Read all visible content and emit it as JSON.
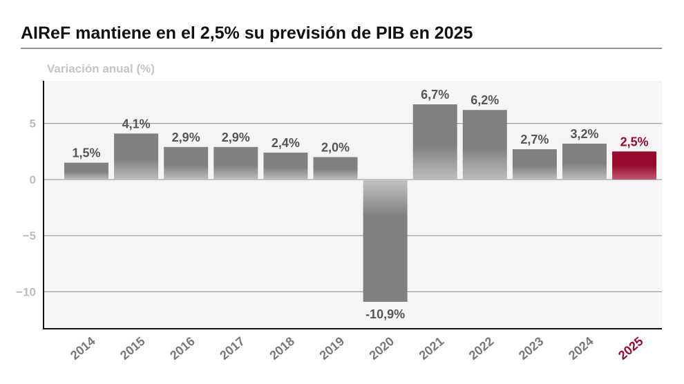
{
  "chart_data": {
    "type": "bar",
    "title": "AIReF mantiene en el 2,5% su previsión de PIB en 2025",
    "ylabel": "Variación anual (%)",
    "xlabel": "",
    "categories": [
      "2014",
      "2015",
      "2016",
      "2017",
      "2018",
      "2019",
      "2020",
      "2021",
      "2022",
      "2023",
      "2024",
      "2025"
    ],
    "values": [
      1.5,
      4.1,
      2.9,
      2.9,
      2.4,
      2.0,
      -10.9,
      6.7,
      6.2,
      2.7,
      3.2,
      2.5
    ],
    "data_labels": [
      "1,5%",
      "4,1%",
      "2,9%",
      "2,9%",
      "2,4%",
      "2,0%",
      "-10,9%",
      "6,7%",
      "6,2%",
      "2,7%",
      "3,2%",
      "2,5%"
    ],
    "ylim": [
      -13.3,
      8.8
    ],
    "yticks": [
      5,
      0,
      -5,
      -10
    ],
    "ytick_labels": [
      "5",
      "0",
      "−5",
      "−10"
    ],
    "grid": true,
    "highlight_category": "2025",
    "colors": {
      "bar": "#808080",
      "highlight": "#960a2c",
      "label": "#555555",
      "xtick": "#777777",
      "plot_bg": "#f5f5f5"
    }
  }
}
